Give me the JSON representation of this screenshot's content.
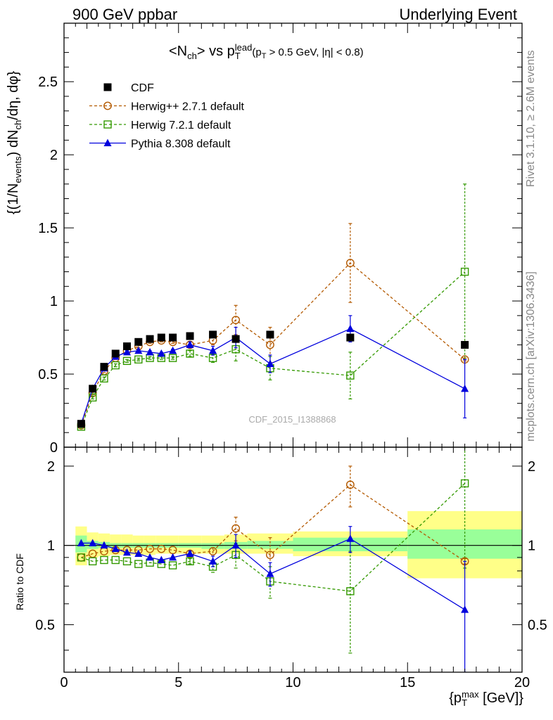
{
  "header": {
    "left": "900 GeV ppbar",
    "right": "Underlying Event",
    "side_top": "Rivet 3.1.10, ≥ 2.6M events",
    "side_bottom": "mcplots.cern.ch [arXiv:1306.3436]",
    "watermark": "CDF_2015_I1388868"
  },
  "chart_data": [
    {
      "type": "scatter",
      "panel": "main",
      "title": "<Nch> vs pT^lead (pT > 0.5 GeV, |η| < 0.8)",
      "ylabel": "{(1/N_events) dN_ch/dη, dφ}",
      "xlabel": "",
      "xlim": [
        0,
        20
      ],
      "ylim": [
        0,
        2.9
      ],
      "y_ticks": [
        "0",
        "0.5",
        "1",
        "1.5",
        "2",
        "2.5"
      ],
      "legend_position": "top-left",
      "series": [
        {
          "name": "CDF",
          "color": "#000000",
          "marker": "filled-square",
          "x": [
            0.75,
            1.25,
            1.75,
            2.25,
            2.75,
            3.25,
            3.75,
            4.25,
            4.75,
            5.5,
            6.5,
            7.5,
            9.0,
            12.5,
            17.5
          ],
          "y": [
            0.16,
            0.4,
            0.55,
            0.64,
            0.69,
            0.72,
            0.74,
            0.75,
            0.75,
            0.76,
            0.77,
            0.74,
            0.77,
            0.75,
            0.7
          ]
        },
        {
          "name": "Herwig++ 2.7.1 default",
          "color": "#b35900",
          "marker": "open-circle",
          "line": "dashed",
          "x": [
            0.75,
            1.25,
            1.75,
            2.25,
            2.75,
            3.25,
            3.75,
            4.25,
            4.75,
            5.5,
            6.5,
            7.5,
            9.0,
            12.5,
            17.5
          ],
          "y": [
            0.15,
            0.37,
            0.52,
            0.61,
            0.66,
            0.69,
            0.72,
            0.73,
            0.72,
            0.7,
            0.73,
            0.87,
            0.7,
            1.26,
            0.6
          ],
          "err": [
            0.01,
            0.01,
            0.01,
            0.01,
            0.01,
            0.01,
            0.01,
            0.01,
            0.01,
            0.02,
            0.03,
            0.1,
            0.12,
            0.27,
            0.01
          ]
        },
        {
          "name": "Herwig 7.2.1 default",
          "color": "#339900",
          "marker": "open-square",
          "line": "dashed",
          "x": [
            0.75,
            1.25,
            1.75,
            2.25,
            2.75,
            3.25,
            3.75,
            4.25,
            4.75,
            5.5,
            6.5,
            7.5,
            9.0,
            12.5,
            17.5
          ],
          "y": [
            0.14,
            0.34,
            0.47,
            0.56,
            0.59,
            0.6,
            0.61,
            0.61,
            0.61,
            0.64,
            0.61,
            0.67,
            0.54,
            0.49,
            1.2
          ],
          "err": [
            0.01,
            0.01,
            0.01,
            0.01,
            0.01,
            0.01,
            0.01,
            0.01,
            0.01,
            0.02,
            0.03,
            0.08,
            0.08,
            0.16,
            0.6
          ]
        },
        {
          "name": "Pythia 8.308 default",
          "color": "#0000dd",
          "marker": "filled-triangle",
          "line": "solid",
          "x": [
            0.75,
            1.25,
            1.75,
            2.25,
            2.75,
            3.25,
            3.75,
            4.25,
            4.75,
            5.5,
            6.5,
            7.5,
            9.0,
            12.5,
            17.5
          ],
          "y": [
            0.16,
            0.4,
            0.54,
            0.62,
            0.65,
            0.66,
            0.65,
            0.64,
            0.66,
            0.7,
            0.66,
            0.75,
            0.57,
            0.81,
            0.4
          ],
          "err": [
            0.01,
            0.01,
            0.01,
            0.01,
            0.01,
            0.01,
            0.01,
            0.01,
            0.01,
            0.02,
            0.03,
            0.07,
            0.06,
            0.09,
            0.2
          ]
        }
      ]
    },
    {
      "type": "scatter",
      "panel": "ratio",
      "ylabel": "Ratio to CDF",
      "xlabel": "{p_T^max [GeV]}",
      "xlim": [
        0,
        20
      ],
      "ylim": [
        0.33,
        2.36
      ],
      "y_scale": "log",
      "x_ticks": [
        "0",
        "5",
        "10",
        "15",
        "20"
      ],
      "y_ticks": [
        "0.5",
        "1",
        "2"
      ],
      "reference_line": 1,
      "bands": {
        "edges": [
          0.5,
          1.0,
          1.5,
          2.0,
          2.5,
          3.0,
          3.5,
          4.0,
          4.5,
          5.0,
          6.0,
          7.0,
          8.0,
          10.0,
          15.0,
          20.0
        ],
        "stat_color": "#99ff99",
        "total_color": "#ffff88",
        "stat_lo": [
          0.94,
          0.97,
          0.98,
          0.98,
          0.98,
          0.98,
          0.98,
          0.98,
          0.98,
          0.98,
          0.97,
          0.97,
          0.97,
          0.95,
          0.89
        ],
        "stat_hi": [
          1.09,
          1.04,
          1.03,
          1.02,
          1.02,
          1.02,
          1.02,
          1.02,
          1.02,
          1.02,
          1.02,
          1.03,
          1.04,
          1.07,
          1.15
        ],
        "tot_lo": [
          0.84,
          0.9,
          0.91,
          0.92,
          0.92,
          0.92,
          0.92,
          0.93,
          0.93,
          0.93,
          0.93,
          0.93,
          0.93,
          0.91,
          0.75
        ],
        "tot_hi": [
          1.18,
          1.12,
          1.11,
          1.1,
          1.1,
          1.09,
          1.09,
          1.09,
          1.09,
          1.09,
          1.09,
          1.1,
          1.11,
          1.13,
          1.35
        ]
      },
      "series": [
        {
          "name": "Herwig++ 2.7.1 default",
          "color": "#b35900",
          "marker": "open-circle",
          "line": "dashed",
          "x": [
            0.75,
            1.25,
            1.75,
            2.25,
            2.75,
            3.25,
            3.75,
            4.25,
            4.75,
            5.5,
            6.5,
            7.5,
            9.0,
            12.5,
            17.5
          ],
          "y": [
            0.9,
            0.93,
            0.95,
            0.96,
            0.96,
            0.96,
            0.97,
            0.97,
            0.96,
            0.93,
            0.95,
            1.16,
            0.92,
            1.7,
            0.87
          ],
          "err": [
            0.01,
            0.01,
            0.01,
            0.01,
            0.01,
            0.01,
            0.01,
            0.01,
            0.01,
            0.02,
            0.03,
            0.12,
            0.15,
            0.3,
            0.02
          ]
        },
        {
          "name": "Herwig 7.2.1 default",
          "color": "#339900",
          "marker": "open-square",
          "line": "dashed",
          "x": [
            0.75,
            1.25,
            1.75,
            2.25,
            2.75,
            3.25,
            3.75,
            4.25,
            4.75,
            5.5,
            6.5,
            7.5,
            9.0,
            12.5,
            17.5
          ],
          "y": [
            0.9,
            0.87,
            0.88,
            0.88,
            0.87,
            0.85,
            0.86,
            0.85,
            0.84,
            0.87,
            0.83,
            0.92,
            0.73,
            0.67,
            1.72
          ],
          "err": [
            0.01,
            0.01,
            0.01,
            0.01,
            0.01,
            0.01,
            0.01,
            0.01,
            0.01,
            0.02,
            0.04,
            0.1,
            0.1,
            0.28,
            0.9
          ]
        },
        {
          "name": "Pythia 8.308 default",
          "color": "#0000dd",
          "marker": "filled-triangle",
          "line": "solid",
          "x": [
            0.75,
            1.25,
            1.75,
            2.25,
            2.75,
            3.25,
            3.75,
            4.25,
            4.75,
            5.5,
            6.5,
            7.5,
            9.0,
            12.5,
            17.5
          ],
          "y": [
            1.02,
            1.02,
            1.0,
            0.97,
            0.94,
            0.93,
            0.9,
            0.88,
            0.9,
            0.93,
            0.87,
            1.0,
            0.78,
            1.06,
            0.57
          ],
          "err": [
            0.01,
            0.01,
            0.01,
            0.01,
            0.01,
            0.01,
            0.01,
            0.01,
            0.01,
            0.02,
            0.04,
            0.1,
            0.08,
            0.12,
            0.3
          ]
        }
      ]
    }
  ]
}
